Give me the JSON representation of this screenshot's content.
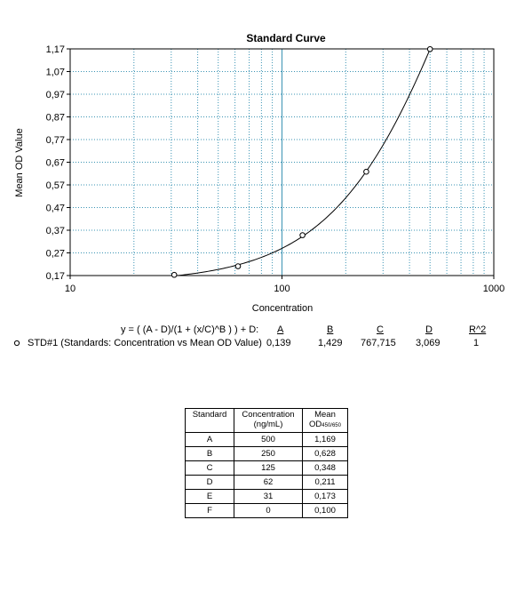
{
  "chart_data": {
    "type": "scatter",
    "title": "Standard Curve",
    "xlabel": "Concentration",
    "ylabel": "Mean OD Value",
    "xscale": "log",
    "xlim": [
      10,
      1000
    ],
    "ylim": [
      0.17,
      1.17
    ],
    "x_ticks": [
      "10",
      "100",
      "1000"
    ],
    "y_ticks": [
      "0,17",
      "0,27",
      "0,37",
      "0,47",
      "0,57",
      "0,67",
      "0,77",
      "0,87",
      "0,97",
      "1,07",
      "1,17"
    ],
    "grid": true,
    "series": [
      {
        "name": "STD#1 (Standards: Concentration vs Mean OD Value)",
        "x": [
          31,
          62,
          125,
          250,
          500
        ],
        "y": [
          0.173,
          0.211,
          0.348,
          0.628,
          1.169
        ]
      }
    ],
    "fit": {
      "equation": "y = ( (A - D)/(1 + (x/C)^B ) ) + D:",
      "headers": [
        "A",
        "B",
        "C",
        "D",
        "R^2"
      ],
      "values": [
        "0,139",
        "1,429",
        "767,715",
        "3,069",
        "1"
      ],
      "A": 0.139,
      "B": 1.429,
      "C": 767.715,
      "D": 3.069
    }
  },
  "table": {
    "headers": [
      "Standard",
      "Concentration",
      "(ng/mL)",
      "Mean",
      "OD",
      "450/650"
    ],
    "rows": [
      [
        "A",
        "500",
        "1,169"
      ],
      [
        "B",
        "250",
        "0,628"
      ],
      [
        "C",
        "125",
        "0,348"
      ],
      [
        "D",
        "62",
        "0,211"
      ],
      [
        "E",
        "31",
        "0,173"
      ],
      [
        "F",
        "0",
        "0,100"
      ]
    ]
  }
}
